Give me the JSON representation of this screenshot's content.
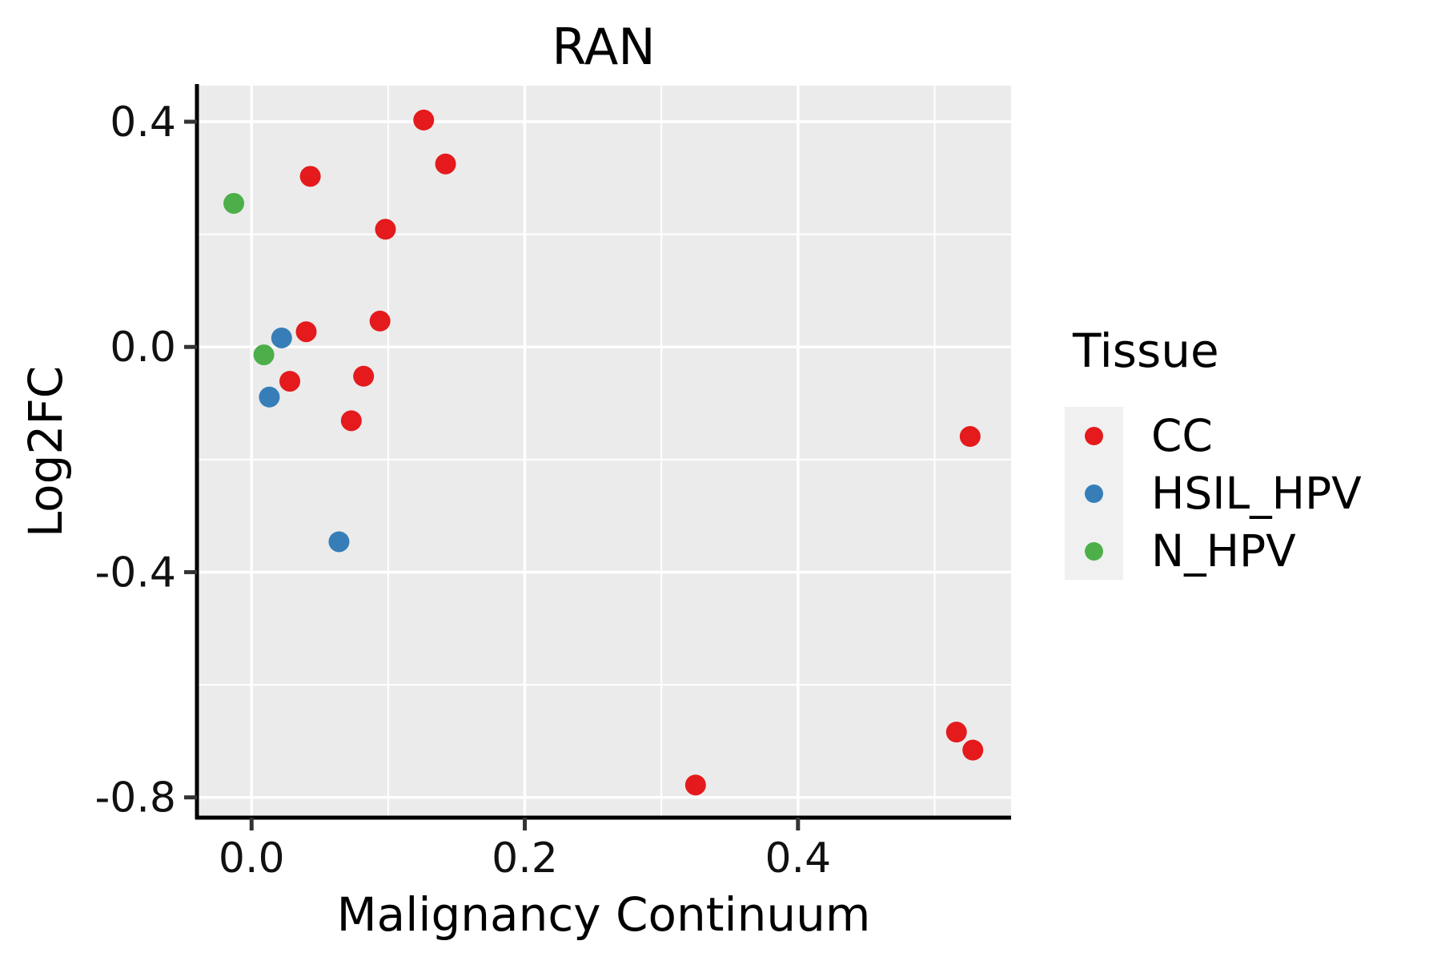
{
  "figure": {
    "title": "RAN"
  },
  "axes": {
    "x_label": "Malignancy Continuum",
    "y_label": "Log2FC"
  },
  "legend": {
    "title": "Tissue",
    "position": "right",
    "items": [
      {
        "label": "CC",
        "color": "#E41A1C"
      },
      {
        "label": "HSIL_HPV",
        "color": "#377EB8"
      },
      {
        "label": "N_HPV",
        "color": "#4DAF4A"
      }
    ]
  },
  "chart_data": {
    "type": "scatter",
    "title": "RAN",
    "xlabel": "Malignancy Continuum",
    "ylabel": "Log2FC",
    "xlim": [
      -0.04,
      0.556
    ],
    "ylim": [
      -0.836,
      0.464
    ],
    "x_ticks": [
      0.0,
      0.2,
      0.4
    ],
    "x_tick_labels": [
      "0.0",
      "0.2",
      "0.4"
    ],
    "y_ticks": [
      0.4,
      0.0,
      -0.4,
      -0.8
    ],
    "y_tick_labels": [
      "0.4",
      "0.0",
      "-0.4",
      "-0.8"
    ],
    "x_minor_gridlines": [
      0.1,
      0.3,
      0.5
    ],
    "y_minor_gridlines": [
      0.2,
      -0.2,
      -0.6
    ],
    "grid": "major and minor white gridlines on gray panel",
    "legend_title": "Tissue",
    "series": [
      {
        "name": "CC",
        "color": "#E41A1C",
        "points": [
          [
            0.126,
            0.403
          ],
          [
            0.142,
            0.325
          ],
          [
            0.043,
            0.303
          ],
          [
            0.098,
            0.209
          ],
          [
            0.094,
            0.046
          ],
          [
            0.04,
            0.027
          ],
          [
            0.028,
            -0.061
          ],
          [
            0.082,
            -0.052
          ],
          [
            0.073,
            -0.131
          ],
          [
            0.526,
            -0.159
          ],
          [
            0.516,
            -0.684
          ],
          [
            0.528,
            -0.716
          ],
          [
            0.325,
            -0.778
          ]
        ]
      },
      {
        "name": "HSIL_HPV",
        "color": "#377EB8",
        "points": [
          [
            0.022,
            0.016
          ],
          [
            0.013,
            -0.089
          ],
          [
            0.064,
            -0.346
          ]
        ]
      },
      {
        "name": "N_HPV",
        "color": "#4DAF4A",
        "points": [
          [
            -0.013,
            0.255
          ],
          [
            0.009,
            -0.014
          ]
        ]
      }
    ],
    "style_colors": {
      "panel_background": "#EBEBEB",
      "gridline": "#FFFFFF",
      "axis_line": "#000000",
      "tick_mark": "#333333",
      "tick_label": "#111111",
      "legend_key_background": "#F0F0F0"
    }
  }
}
